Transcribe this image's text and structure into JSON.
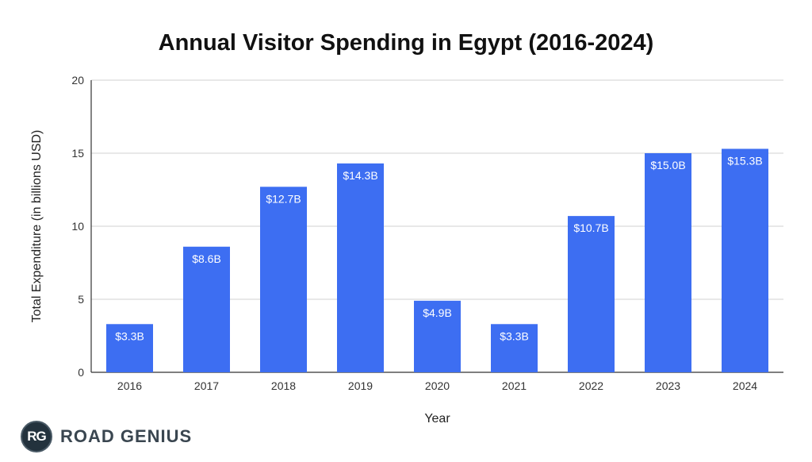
{
  "chart_data": {
    "type": "bar",
    "title": "Annual Visitor Spending in Egypt (2016-2024)",
    "xlabel": "Year",
    "ylabel": "Total Expenditure (in billions USD)",
    "ylim": [
      0,
      20
    ],
    "yticks": [
      "0",
      "5",
      "10",
      "15",
      "20"
    ],
    "grid": true,
    "bar_color": "#3d6ef2",
    "categories": [
      "2016",
      "2017",
      "2018",
      "2019",
      "2020",
      "2021",
      "2022",
      "2023",
      "2024"
    ],
    "values": [
      3.3,
      8.6,
      12.7,
      14.3,
      4.9,
      3.3,
      10.7,
      15.0,
      15.3
    ],
    "data_labels": [
      "$3.3B",
      "$8.6B",
      "$12.7B",
      "$14.3B",
      "$4.9B",
      "$3.3B",
      "$10.7B",
      "$15.0B",
      "$15.3B"
    ]
  },
  "brand": {
    "badge_text": "RG",
    "name": "ROAD GENIUS"
  }
}
